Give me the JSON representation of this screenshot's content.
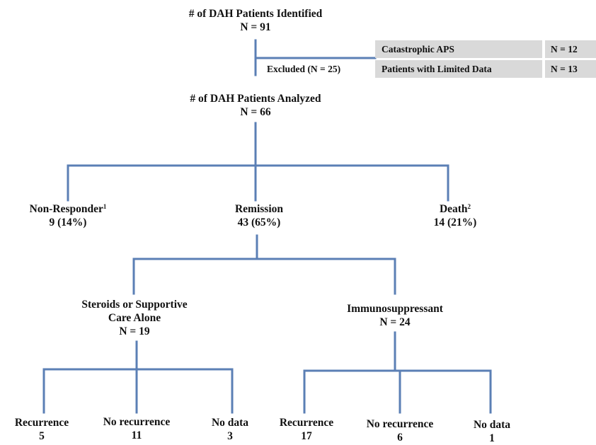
{
  "identified": {
    "title": "# of DAH Patients Identified",
    "count": "N = 91"
  },
  "excluded": {
    "label": "Excluded (N = 25)",
    "rows": [
      {
        "reason": "Catastrophic APS",
        "count": "N = 12"
      },
      {
        "reason": "Patients with Limited Data",
        "count": "N = 13"
      }
    ]
  },
  "analyzed": {
    "title": "# of DAH Patients Analyzed",
    "count": "N = 66"
  },
  "outcomes": {
    "non_responder": {
      "label": "Non-Responder",
      "sup": "1",
      "value": "9 (14%)"
    },
    "remission": {
      "label": "Remission",
      "value": "43 (65%)"
    },
    "death": {
      "label": "Death",
      "sup": "2",
      "value": "14 (21%)"
    }
  },
  "treatments": {
    "steroids": {
      "line1": "Steroids or Supportive",
      "line2": "Care Alone",
      "count": "N = 19"
    },
    "immuno": {
      "label": "Immunosuppressant",
      "count": "N = 24"
    }
  },
  "steroid_leaves": {
    "recurrence": {
      "label": "Recurrence",
      "value": "5"
    },
    "no_recurrence": {
      "label": "No recurrence",
      "value": "11"
    },
    "no_data": {
      "label": "No data",
      "value": "3"
    }
  },
  "immuno_leaves": {
    "recurrence": {
      "label": "Recurrence",
      "value": "17"
    },
    "no_recurrence": {
      "label": "No recurrence",
      "value": "6"
    },
    "no_data": {
      "label": "No data",
      "value": "1"
    }
  },
  "colors": {
    "connector": "#5b7fb5",
    "table_bg": "#d9d9d9"
  }
}
